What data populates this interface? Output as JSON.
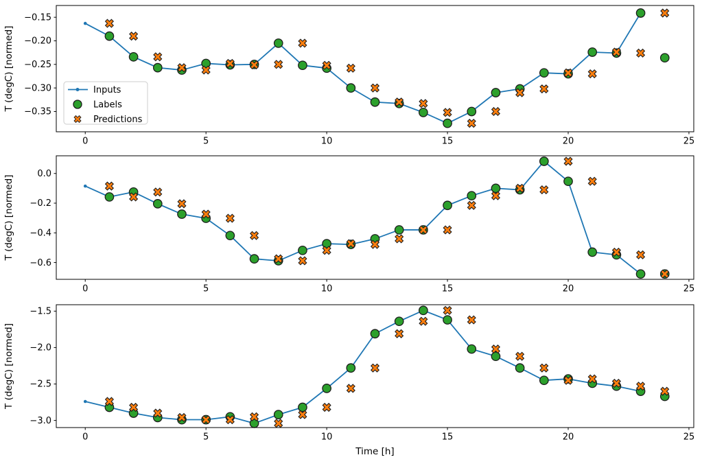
{
  "figure": {
    "xlabel": "Time [h]",
    "ylabel": "T (degC) [normed]",
    "colors": {
      "inputs": "#1f77b4",
      "labels": "#2ca02c",
      "predictions": "#ff7f0e",
      "marker_edge": "#1c1c1c",
      "spine": "#000000",
      "legend_border": "#cccccc",
      "legend_bg": "#ffffff"
    },
    "legend": {
      "entries": [
        {
          "label": "Inputs",
          "marker": "line-dot",
          "color": "#1f77b4"
        },
        {
          "label": "Labels",
          "marker": "circle",
          "color": "#2ca02c"
        },
        {
          "label": "Predictions",
          "marker": "x",
          "color": "#ff7f0e"
        }
      ]
    }
  },
  "chart_data": [
    {
      "type": "line",
      "xlabel": "",
      "ylabel": "T (degC) [normed]",
      "xlim": [
        -1.2,
        25.2
      ],
      "ylim": [
        -0.393,
        -0.125
      ],
      "xticks": [
        0,
        5,
        10,
        15,
        20,
        25
      ],
      "xtick_labels": [
        "0",
        "5",
        "10",
        "15",
        "20",
        "25"
      ],
      "yticks": [
        -0.15,
        -0.2,
        -0.25,
        -0.3,
        -0.35
      ],
      "ytick_labels": [
        "−0.15",
        "−0.20",
        "−0.25",
        "−0.30",
        "−0.35"
      ],
      "grid": false,
      "show_legend": true,
      "series": [
        {
          "name": "Inputs",
          "kind": "line",
          "marker": "dot",
          "color": "#1f77b4",
          "x": [
            0,
            1,
            2,
            3,
            4,
            5,
            6,
            7,
            8,
            9,
            10,
            11,
            12,
            13,
            14,
            15,
            16,
            17,
            18,
            19,
            20,
            21,
            22,
            23
          ],
          "y": [
            -0.163,
            -0.19,
            -0.234,
            -0.257,
            -0.262,
            -0.248,
            -0.251,
            -0.25,
            -0.205,
            -0.252,
            -0.258,
            -0.3,
            -0.33,
            -0.333,
            -0.352,
            -0.375,
            -0.35,
            -0.31,
            -0.302,
            -0.268,
            -0.27,
            -0.224,
            -0.226,
            -0.141
          ]
        },
        {
          "name": "Labels",
          "kind": "scatter",
          "marker": "circle",
          "color": "#2ca02c",
          "x": [
            1,
            2,
            3,
            4,
            5,
            6,
            7,
            8,
            9,
            10,
            11,
            12,
            13,
            14,
            15,
            16,
            17,
            18,
            19,
            20,
            21,
            22,
            23,
            24
          ],
          "y": [
            -0.19,
            -0.234,
            -0.257,
            -0.262,
            -0.248,
            -0.251,
            -0.25,
            -0.205,
            -0.252,
            -0.258,
            -0.3,
            -0.33,
            -0.333,
            -0.352,
            -0.375,
            -0.35,
            -0.31,
            -0.302,
            -0.268,
            -0.27,
            -0.224,
            -0.226,
            -0.141,
            -0.236
          ]
        },
        {
          "name": "Predictions",
          "kind": "scatter",
          "marker": "x",
          "color": "#ff7f0e",
          "x": [
            1,
            2,
            3,
            4,
            5,
            6,
            7,
            8,
            9,
            10,
            11,
            12,
            13,
            14,
            15,
            16,
            17,
            18,
            19,
            20,
            21,
            22,
            23,
            24
          ],
          "y": [
            -0.163,
            -0.19,
            -0.234,
            -0.257,
            -0.262,
            -0.248,
            -0.251,
            -0.25,
            -0.205,
            -0.252,
            -0.258,
            -0.3,
            -0.33,
            -0.333,
            -0.352,
            -0.375,
            -0.35,
            -0.31,
            -0.302,
            -0.268,
            -0.27,
            -0.224,
            -0.226,
            -0.141
          ]
        }
      ]
    },
    {
      "type": "line",
      "xlabel": "",
      "ylabel": "T (degC) [normed]",
      "xlim": [
        -1.2,
        25.2
      ],
      "ylim": [
        -0.713,
        0.119
      ],
      "xticks": [
        0,
        5,
        10,
        15,
        20,
        25
      ],
      "xtick_labels": [
        "0",
        "5",
        "10",
        "15",
        "20",
        "25"
      ],
      "yticks": [
        0.0,
        -0.2,
        -0.4,
        -0.6
      ],
      "ytick_labels": [
        "0.0",
        "−0.2",
        "−0.4",
        "−0.6"
      ],
      "grid": false,
      "show_legend": false,
      "series": [
        {
          "name": "Inputs",
          "kind": "line",
          "marker": "dot",
          "color": "#1f77b4",
          "x": [
            0,
            1,
            2,
            3,
            4,
            5,
            6,
            7,
            8,
            9,
            10,
            11,
            12,
            13,
            14,
            15,
            16,
            17,
            18,
            19,
            20,
            21,
            22,
            23
          ],
          "y": [
            -0.085,
            -0.158,
            -0.125,
            -0.204,
            -0.274,
            -0.302,
            -0.418,
            -0.575,
            -0.588,
            -0.518,
            -0.473,
            -0.478,
            -0.44,
            -0.38,
            -0.38,
            -0.215,
            -0.15,
            -0.1,
            -0.11,
            0.082,
            -0.053,
            -0.53,
            -0.548,
            -0.677
          ]
        },
        {
          "name": "Labels",
          "kind": "scatter",
          "marker": "circle",
          "color": "#2ca02c",
          "x": [
            1,
            2,
            3,
            4,
            5,
            6,
            7,
            8,
            9,
            10,
            11,
            12,
            13,
            14,
            15,
            16,
            17,
            18,
            19,
            20,
            21,
            22,
            23,
            24
          ],
          "y": [
            -0.158,
            -0.125,
            -0.204,
            -0.274,
            -0.302,
            -0.418,
            -0.575,
            -0.588,
            -0.518,
            -0.473,
            -0.478,
            -0.44,
            -0.38,
            -0.38,
            -0.215,
            -0.15,
            -0.1,
            -0.11,
            0.082,
            -0.053,
            -0.53,
            -0.548,
            -0.677,
            -0.677
          ]
        },
        {
          "name": "Predictions",
          "kind": "scatter",
          "marker": "x",
          "color": "#ff7f0e",
          "x": [
            1,
            2,
            3,
            4,
            5,
            6,
            7,
            8,
            9,
            10,
            11,
            12,
            13,
            14,
            15,
            16,
            17,
            18,
            19,
            20,
            21,
            22,
            23,
            24
          ],
          "y": [
            -0.085,
            -0.158,
            -0.125,
            -0.204,
            -0.274,
            -0.302,
            -0.418,
            -0.575,
            -0.588,
            -0.518,
            -0.473,
            -0.478,
            -0.44,
            -0.38,
            -0.38,
            -0.215,
            -0.15,
            -0.1,
            -0.11,
            0.082,
            -0.053,
            -0.53,
            -0.548,
            -0.677
          ]
        }
      ]
    },
    {
      "type": "line",
      "xlabel": "Time [h]",
      "ylabel": "T (degC) [normed]",
      "xlim": [
        -1.2,
        25.2
      ],
      "ylim": [
        -3.098,
        -1.412
      ],
      "xticks": [
        0,
        5,
        10,
        15,
        20,
        25
      ],
      "xtick_labels": [
        "0",
        "5",
        "10",
        "15",
        "20",
        "25"
      ],
      "yticks": [
        -1.5,
        -2.0,
        -2.5,
        -3.0
      ],
      "ytick_labels": [
        "−1.5",
        "−2.0",
        "−2.5",
        "−3.0"
      ],
      "grid": false,
      "show_legend": false,
      "series": [
        {
          "name": "Inputs",
          "kind": "line",
          "marker": "dot",
          "color": "#1f77b4",
          "x": [
            0,
            1,
            2,
            3,
            4,
            5,
            6,
            7,
            8,
            9,
            10,
            11,
            12,
            13,
            14,
            15,
            16,
            17,
            18,
            19,
            20,
            21,
            22,
            23
          ],
          "y": [
            -2.74,
            -2.82,
            -2.9,
            -2.96,
            -2.99,
            -2.99,
            -2.95,
            -3.04,
            -2.92,
            -2.82,
            -2.56,
            -2.28,
            -1.81,
            -1.64,
            -1.49,
            -1.62,
            -2.02,
            -2.12,
            -2.28,
            -2.45,
            -2.43,
            -2.49,
            -2.53,
            -2.6
          ]
        },
        {
          "name": "Labels",
          "kind": "scatter",
          "marker": "circle",
          "color": "#2ca02c",
          "x": [
            1,
            2,
            3,
            4,
            5,
            6,
            7,
            8,
            9,
            10,
            11,
            12,
            13,
            14,
            15,
            16,
            17,
            18,
            19,
            20,
            21,
            22,
            23,
            24
          ],
          "y": [
            -2.82,
            -2.9,
            -2.96,
            -2.99,
            -2.99,
            -2.95,
            -3.04,
            -2.92,
            -2.82,
            -2.56,
            -2.28,
            -1.81,
            -1.64,
            -1.49,
            -1.62,
            -2.02,
            -2.12,
            -2.28,
            -2.45,
            -2.43,
            -2.49,
            -2.53,
            -2.6,
            -2.67
          ]
        },
        {
          "name": "Predictions",
          "kind": "scatter",
          "marker": "x",
          "color": "#ff7f0e",
          "x": [
            1,
            2,
            3,
            4,
            5,
            6,
            7,
            8,
            9,
            10,
            11,
            12,
            13,
            14,
            15,
            16,
            17,
            18,
            19,
            20,
            21,
            22,
            23,
            24
          ],
          "y": [
            -2.74,
            -2.82,
            -2.9,
            -2.96,
            -2.99,
            -2.99,
            -2.95,
            -3.04,
            -2.92,
            -2.82,
            -2.56,
            -2.28,
            -1.81,
            -1.64,
            -1.49,
            -1.62,
            -2.02,
            -2.12,
            -2.28,
            -2.45,
            -2.43,
            -2.49,
            -2.53,
            -2.6
          ]
        }
      ]
    }
  ]
}
